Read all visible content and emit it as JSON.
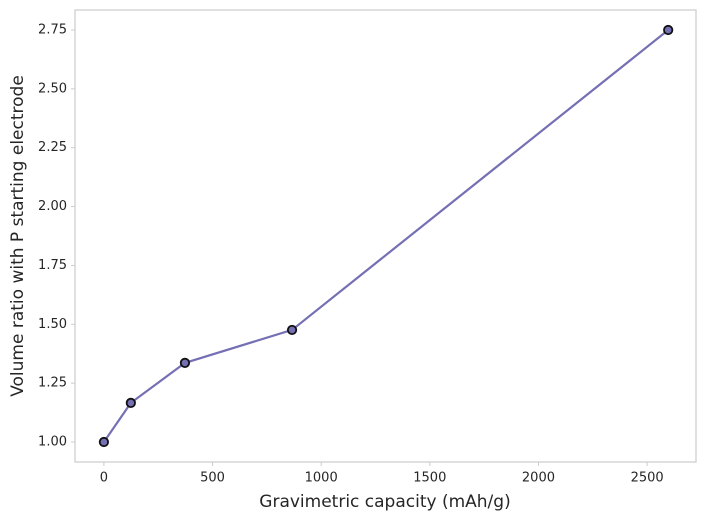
{
  "chart_data": {
    "type": "line",
    "x_label": "Gravimetric capacity (mAh/g)",
    "y_label": "Volume ratio with P starting electrode",
    "x": [
      0,
      124,
      373,
      866,
      2597
    ],
    "series": [
      {
        "color": "#7570b3",
        "values": [
          1.0,
          1.166,
          1.336,
          1.476,
          2.75
        ]
      }
    ],
    "xlim": [
      -133,
      2725
    ],
    "ylim": [
      0.915,
      2.835
    ],
    "xticks": [
      0,
      500,
      1000,
      1500,
      2000,
      2500
    ],
    "yticks": [
      {
        "value": 1.0,
        "label": "1.00"
      },
      {
        "value": 1.25,
        "label": "1.25"
      },
      {
        "value": 1.5,
        "label": "1.50"
      },
      {
        "value": 1.75,
        "label": "1.75"
      },
      {
        "value": 2.0,
        "label": "2.00"
      },
      {
        "value": 2.25,
        "label": "2.25"
      },
      {
        "value": 2.5,
        "label": "2.50"
      },
      {
        "value": 2.75,
        "label": "2.75"
      }
    ]
  }
}
